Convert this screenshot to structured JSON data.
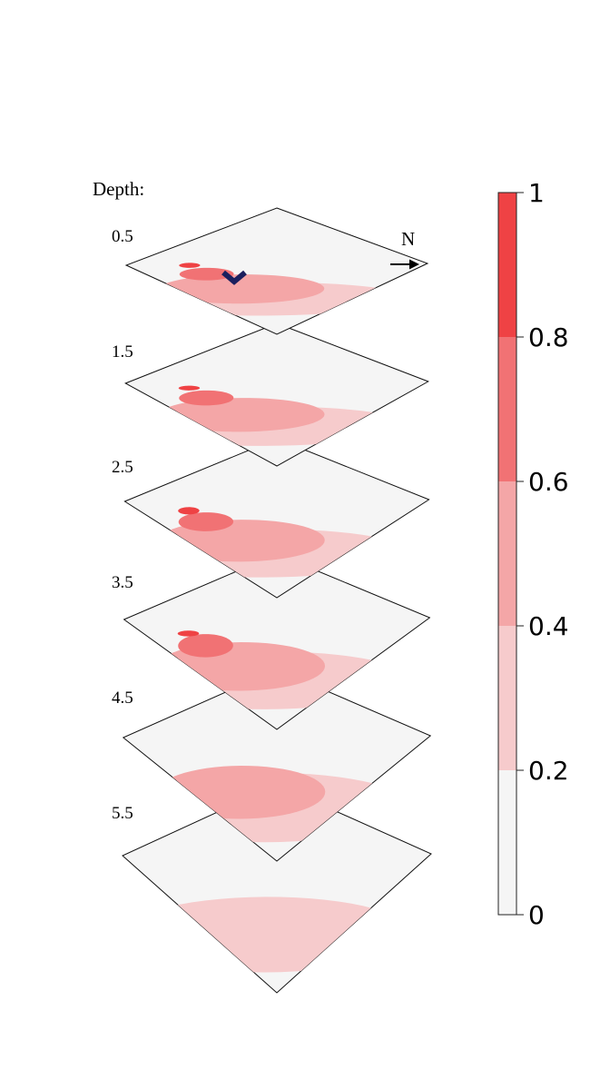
{
  "chart_data": {
    "type": "heatmap",
    "depth_heading": "Depth:",
    "north_label": "N",
    "layers": [
      {
        "depth": "0.5",
        "peak": 0.85,
        "shape": [
          0.4,
          0.35,
          0.15,
          0.06
        ]
      },
      {
        "depth": "1.5",
        "peak": 0.75,
        "shape": [
          0.42,
          0.36,
          0.16,
          0.05
        ]
      },
      {
        "depth": "2.5",
        "peak": 0.68,
        "shape": [
          0.46,
          0.4,
          0.18,
          0.07
        ]
      },
      {
        "depth": "3.5",
        "peak": 0.62,
        "shape": [
          0.5,
          0.42,
          0.2,
          0.05
        ]
      },
      {
        "depth": "4.5",
        "peak": 0.45,
        "shape": [
          0.55,
          0.42,
          0.0,
          0.0
        ]
      },
      {
        "depth": "5.5",
        "peak": 0.3,
        "shape": [
          0.55,
          0.0,
          0.0,
          0.0
        ]
      }
    ],
    "colorbar": {
      "min": 0,
      "max": 1,
      "ticks": [
        "0",
        "0.2",
        "0.4",
        "0.6",
        "0.8",
        "1"
      ],
      "bins": [
        {
          "from": 0.0,
          "to": 0.2,
          "color": "#f5f5f5"
        },
        {
          "from": 0.2,
          "to": 0.4,
          "color": "#f6cbcc"
        },
        {
          "from": 0.4,
          "to": 0.6,
          "color": "#f4a6a7"
        },
        {
          "from": 0.6,
          "to": 0.8,
          "color": "#f17274"
        },
        {
          "from": 0.8,
          "to": 1.0,
          "color": "#ef4244"
        }
      ]
    },
    "marker_color": "#1b1f5e"
  }
}
